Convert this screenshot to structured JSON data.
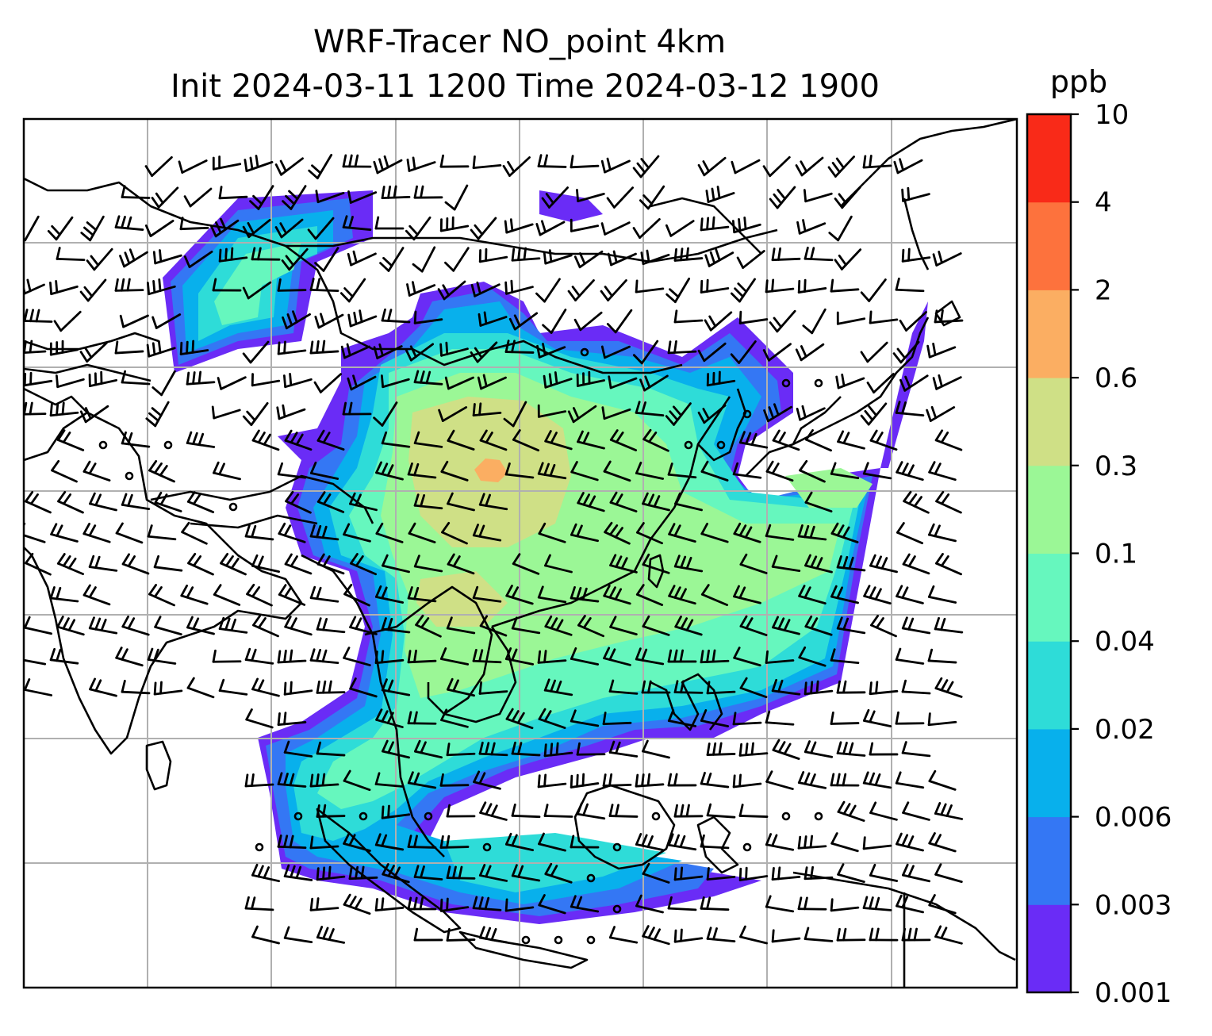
{
  "title": {
    "line1": "WRF-Tracer NO_point 4km",
    "line2": "Init 2024-03-11 1200 Time 2024-03-12 1900"
  },
  "colorbar": {
    "unit": "ppb",
    "ticks": [
      "0.001",
      "0.003",
      "0.006",
      "0.02",
      "0.04",
      "0.1",
      "0.3",
      "0.6",
      "2",
      "4",
      "10"
    ],
    "colors": [
      "#6a2cf6",
      "#3477f4",
      "#08b0ec",
      "#2edcd8",
      "#66f7be",
      "#9bf796",
      "#cfe086",
      "#fbae62",
      "#fd723d",
      "#f92a18"
    ]
  },
  "map": {
    "gridlines": true,
    "coastline_color": "#000000",
    "gridline_color": "#b0b0b0",
    "overlays": [
      "coastlines",
      "country-borders",
      "wind-barbs",
      "tracer-concentration-fill"
    ]
  }
}
